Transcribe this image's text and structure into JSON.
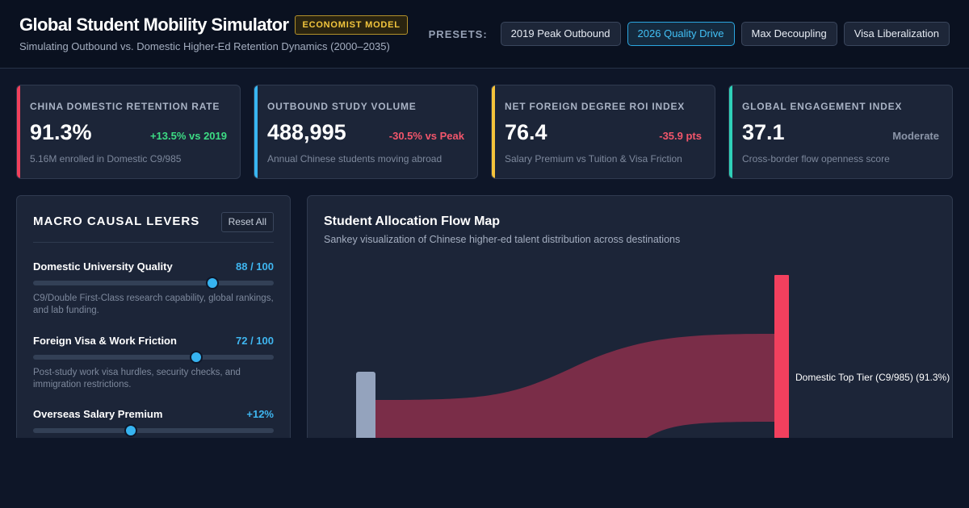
{
  "header": {
    "title": "Global Student Mobility Simulator",
    "badge": "ECONOMIST MODEL",
    "subtitle": "Simulating Outbound vs. Domestic Higher-Ed Retention Dynamics (2000–2035)",
    "presets_label": "PRESETS:",
    "presets": [
      {
        "label": "2019 Peak Outbound",
        "active": false
      },
      {
        "label": "2026 Quality Drive",
        "active": true
      },
      {
        "label": "Max Decoupling",
        "active": false
      },
      {
        "label": "Visa Liberalization",
        "active": false
      }
    ]
  },
  "kpis": [
    {
      "label": "China Domestic Retention Rate",
      "value": "91.3%",
      "delta": "+13.5% vs 2019",
      "delta_color": "#3ddc84",
      "note": "5.16M enrolled in Domestic C9/985",
      "accent": "#f0405c"
    },
    {
      "label": "Outbound Study Volume",
      "value": "488,995",
      "delta": "-30.5% vs Peak",
      "delta_color": "#f2566b",
      "note": "Annual Chinese students moving abroad",
      "accent": "#38b6f2"
    },
    {
      "label": "Net Foreign Degree ROI Index",
      "value": "76.4",
      "delta": "-35.9 pts",
      "delta_color": "#f2566b",
      "note": "Salary Premium vs Tuition & Visa Friction",
      "accent": "#f5c33b"
    },
    {
      "label": "Global Engagement Index",
      "value": "37.1",
      "delta": "Moderate",
      "delta_color": "#8b95a8",
      "note": "Cross-border flow openness score",
      "accent": "#2fd0b8"
    }
  ],
  "levers": {
    "title": "MACRO CAUSAL LEVERS",
    "reset_label": "Reset All",
    "items": [
      {
        "name": "Domestic University Quality",
        "value": "88 / 100",
        "level": 0.745,
        "desc": "C9/Double First-Class research capability, global rankings, and lab funding."
      },
      {
        "name": "Foreign Visa & Work Friction",
        "value": "72 / 100",
        "level": 0.678,
        "desc": "Post-study work visa hurdles, security checks, and immigration restrictions."
      },
      {
        "name": "Overseas Salary Premium",
        "value": "+12%",
        "level": 0.405,
        "desc": ""
      }
    ]
  },
  "flow": {
    "title": "Student Allocation Flow Map",
    "subtitle": "Sankey visualization of Chinese higher-ed talent distribution across destinations",
    "target_label": "Domestic Top Tier (C9/985) (91.3%)",
    "colors": {
      "source": "#94a3bd",
      "target": "#f2405e",
      "link": "#7a2d48"
    }
  }
}
